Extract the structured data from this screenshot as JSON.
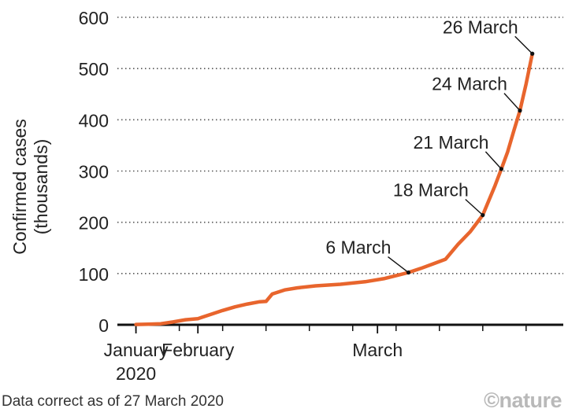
{
  "chart_data": {
    "type": "line",
    "title": "",
    "xlabel": "",
    "ylabel": "Confirmed cases",
    "ylabel_sub": "(thousands)",
    "ylim": [
      0,
      600
    ],
    "yticks": [
      0,
      100,
      200,
      300,
      400,
      500,
      600
    ],
    "x_tick_labels": [
      {
        "date": "2020-01-22",
        "label": "January",
        "sub": "2020"
      },
      {
        "date": "2020-02-01",
        "label": "February",
        "sub": ""
      },
      {
        "date": "2020-03-01",
        "label": "March",
        "sub": ""
      }
    ],
    "grid": true,
    "colors": {
      "line": "#e8652d",
      "grid": "#555555",
      "axis": "#111111"
    },
    "series": [
      {
        "x": [
          "2020-01-22",
          "2020-01-24",
          "2020-01-26",
          "2020-01-28",
          "2020-01-30",
          "2020-02-01",
          "2020-02-03",
          "2020-02-05",
          "2020-02-07",
          "2020-02-09",
          "2020-02-11",
          "2020-02-12",
          "2020-02-13",
          "2020-02-15",
          "2020-02-17",
          "2020-02-20",
          "2020-02-24",
          "2020-02-28",
          "2020-03-02",
          "2020-03-06",
          "2020-03-08",
          "2020-03-10",
          "2020-03-12",
          "2020-03-14",
          "2020-03-16",
          "2020-03-18",
          "2020-03-20",
          "2020-03-21",
          "2020-03-22",
          "2020-03-23",
          "2020-03-24",
          "2020-03-25",
          "2020-03-26"
        ],
        "y": [
          0.6,
          1.0,
          2.0,
          5.5,
          9.8,
          12.0,
          20.0,
          28.0,
          35.0,
          40.5,
          45.0,
          45.5,
          60.0,
          68.0,
          72.0,
          76.0,
          79.0,
          84.0,
          90.0,
          102.0,
          110.0,
          119.0,
          128.0,
          157.0,
          182.0,
          214.0,
          272.0,
          304.0,
          337.0,
          378.0,
          418.0,
          470.0,
          529.0
        ]
      }
    ],
    "annotations": [
      {
        "label": "6 March",
        "x": "2020-03-06",
        "y": 102,
        "text_pos": "above-left"
      },
      {
        "label": "18 March",
        "x": "2020-03-18",
        "y": 214,
        "text_pos": "above-left"
      },
      {
        "label": "21 March",
        "x": "2020-03-21",
        "y": 304,
        "text_pos": "above-left"
      },
      {
        "label": "24 March",
        "x": "2020-03-24",
        "y": 418,
        "text_pos": "above-left"
      },
      {
        "label": "26 March",
        "x": "2020-03-26",
        "y": 529,
        "text_pos": "above-left"
      }
    ]
  },
  "footnote": "Data correct as of 27 March 2020",
  "brand": "©nature"
}
